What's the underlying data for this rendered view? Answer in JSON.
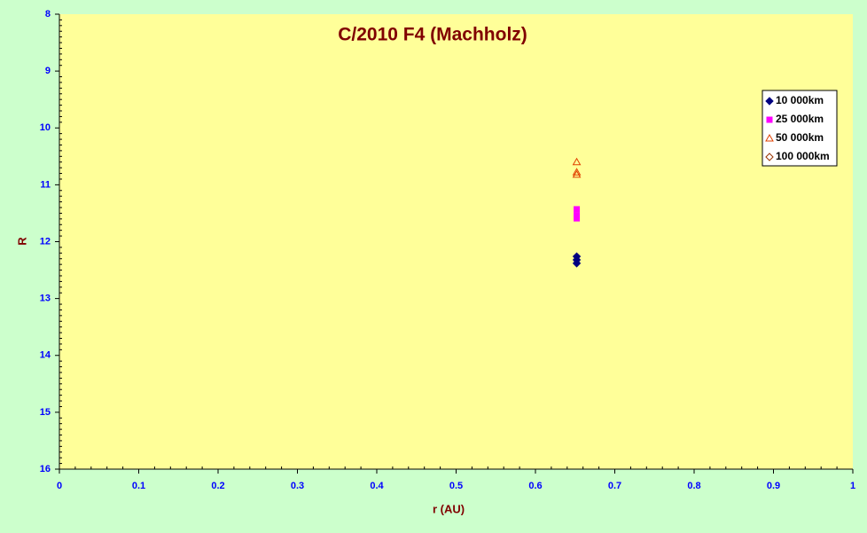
{
  "chart_data": {
    "type": "scatter",
    "title": "C/2010 F4 (Machholz)",
    "x_label": "r (AU)",
    "y_label": "R",
    "xlim": [
      0,
      1
    ],
    "xticks": [
      0,
      0.1,
      0.2,
      0.3,
      0.4,
      0.5,
      0.6,
      0.7,
      0.8,
      0.9,
      1
    ],
    "ylim": [
      8,
      16
    ],
    "yticks": [
      8,
      9,
      10,
      11,
      12,
      13,
      14,
      15,
      16
    ],
    "y_reversed": true,
    "legend": "right",
    "series": [
      {
        "name": "10 000km",
        "color": "#000080",
        "marker": "diamond",
        "filled": true,
        "x": [
          0.652,
          0.652,
          0.652
        ],
        "values": [
          12.26,
          12.32,
          12.38
        ]
      },
      {
        "name": "25 000km",
        "color": "#ff00ff",
        "marker": "square",
        "filled": true,
        "x": [
          0.652,
          0.652,
          0.652
        ],
        "values": [
          11.43,
          11.54,
          11.59
        ]
      },
      {
        "name": "50 000km",
        "color": "#e04000",
        "marker": "triangle",
        "filled": false,
        "x": [
          0.652,
          0.652,
          0.652
        ],
        "values": [
          10.6,
          10.78,
          10.82
        ]
      },
      {
        "name": "100 000km",
        "color": "#993300",
        "marker": "diamond",
        "filled": false,
        "x": [],
        "values": []
      }
    ]
  }
}
